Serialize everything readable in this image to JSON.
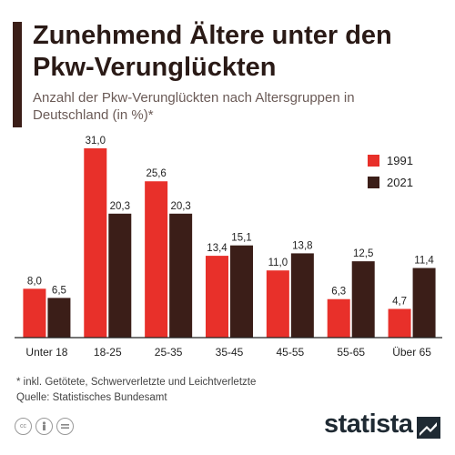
{
  "header": {
    "title": "Zunehmend Ältere unter den Pkw-Verunglückten",
    "subtitle": "Anzahl der Pkw-Verunglückten nach Altersgruppen in Deutschland (in %)*"
  },
  "chart_data": {
    "type": "bar",
    "title": "Zunehmend Ältere unter den Pkw-Verunglückten",
    "subtitle": "Anzahl der Pkw-Verunglückten nach Altersgruppen in Deutschland (in %)*",
    "categories": [
      "Unter 18",
      "18-25",
      "25-35",
      "35-45",
      "45-55",
      "55-65",
      "Über 65"
    ],
    "series": [
      {
        "name": "1991",
        "color": "#e8302a",
        "values": [
          8.0,
          31.0,
          25.6,
          13.4,
          11.0,
          6.3,
          4.7
        ],
        "labels": [
          "8,0",
          "31,0",
          "25,6",
          "13,4",
          "11,0",
          "6,3",
          "4,7"
        ]
      },
      {
        "name": "2021",
        "color": "#3b1e18",
        "values": [
          6.5,
          20.3,
          20.3,
          15.1,
          13.8,
          12.5,
          11.4
        ],
        "labels": [
          "6,5",
          "20,3",
          "20,3",
          "15,1",
          "13,8",
          "12,5",
          "11,4"
        ]
      }
    ],
    "ylim": [
      0,
      31
    ],
    "grid": false,
    "legend_position": "top-right"
  },
  "legend": {
    "items": [
      {
        "label": "1991",
        "color": "#e8302a"
      },
      {
        "label": "2021",
        "color": "#3b1e18"
      }
    ]
  },
  "footer": {
    "note": "* inkl. Getötete, Schwerverletzte und Leichtverletzte",
    "source": "Quelle: Statistisches Bundesamt",
    "logo": "statista",
    "icons": [
      "cc-icon",
      "person-icon",
      "equals-icon"
    ]
  }
}
